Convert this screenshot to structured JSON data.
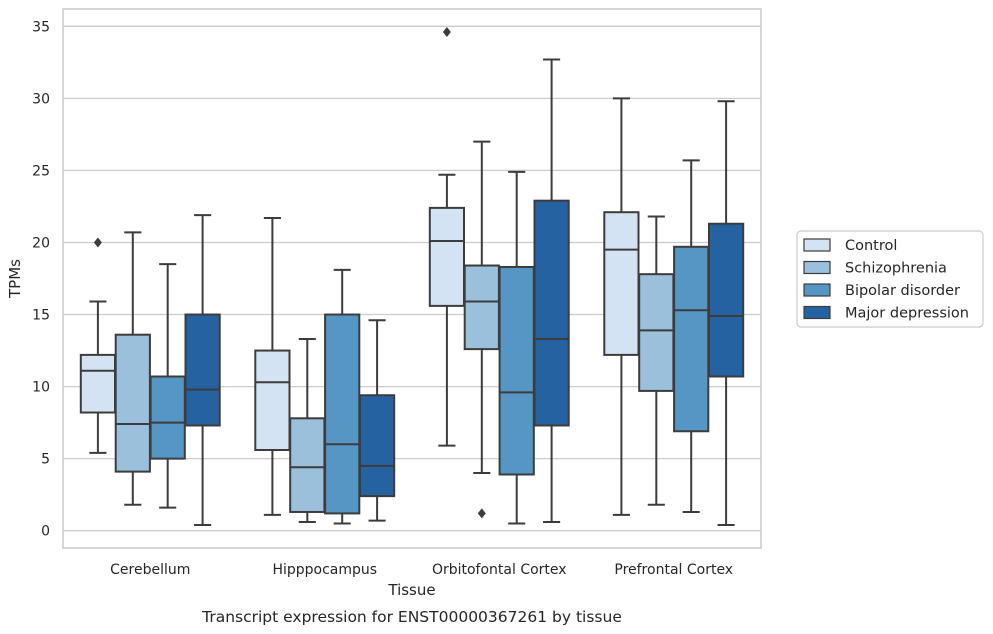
{
  "chart_data": {
    "type": "box",
    "xlabel": "Tissue",
    "ylabel": "TPMs",
    "caption": "Transcript expression for ENST00000367261 by tissue",
    "ylim": [
      -1.2,
      36.2
    ],
    "yticks": [
      0,
      5,
      10,
      15,
      20,
      25,
      30,
      35
    ],
    "grid": "horizontal",
    "legend_position": "right",
    "categories": [
      "Cerebellum",
      "Hipppocampus",
      "Orbitofontal Cortex",
      "Prefrontal Cortex"
    ],
    "series": [
      {
        "name": "Control",
        "color": "#d3e3f3",
        "boxes": [
          {
            "whisker_low": 5.4,
            "q1": 8.2,
            "median": 11.1,
            "q3": 12.2,
            "whisker_high": 15.9,
            "outliers": [
              20.0
            ]
          },
          {
            "whisker_low": 1.1,
            "q1": 5.6,
            "median": 10.3,
            "q3": 12.5,
            "whisker_high": 21.7,
            "outliers": []
          },
          {
            "whisker_low": 5.9,
            "q1": 15.6,
            "median": 20.1,
            "q3": 22.4,
            "whisker_high": 24.7,
            "outliers": [
              34.6
            ]
          },
          {
            "whisker_low": 1.1,
            "q1": 12.2,
            "median": 19.5,
            "q3": 22.1,
            "whisker_high": 30.0,
            "outliers": []
          }
        ]
      },
      {
        "name": "Schizophrenia",
        "color": "#9ac0dc",
        "boxes": [
          {
            "whisker_low": 1.8,
            "q1": 4.1,
            "median": 7.4,
            "q3": 13.6,
            "whisker_high": 20.7,
            "outliers": []
          },
          {
            "whisker_low": 0.6,
            "q1": 1.3,
            "median": 4.4,
            "q3": 7.8,
            "whisker_high": 13.3,
            "outliers": []
          },
          {
            "whisker_low": 4.0,
            "q1": 12.6,
            "median": 15.9,
            "q3": 18.4,
            "whisker_high": 27.0,
            "outliers": [
              1.2
            ]
          },
          {
            "whisker_low": 1.8,
            "q1": 9.7,
            "median": 13.9,
            "q3": 17.8,
            "whisker_high": 21.8,
            "outliers": []
          }
        ]
      },
      {
        "name": "Bipolar disorder",
        "color": "#5596c4",
        "boxes": [
          {
            "whisker_low": 1.6,
            "q1": 5.0,
            "median": 7.5,
            "q3": 10.7,
            "whisker_high": 18.5,
            "outliers": []
          },
          {
            "whisker_low": 0.5,
            "q1": 1.2,
            "median": 6.0,
            "q3": 15.0,
            "whisker_high": 18.1,
            "outliers": []
          },
          {
            "whisker_low": 0.5,
            "q1": 3.9,
            "median": 9.6,
            "q3": 18.3,
            "whisker_high": 24.9,
            "outliers": []
          },
          {
            "whisker_low": 1.3,
            "q1": 6.9,
            "median": 15.3,
            "q3": 19.7,
            "whisker_high": 25.7,
            "outliers": []
          }
        ]
      },
      {
        "name": "Major depression",
        "color": "#2462a2",
        "boxes": [
          {
            "whisker_low": 0.4,
            "q1": 7.3,
            "median": 9.8,
            "q3": 15.0,
            "whisker_high": 21.9,
            "outliers": []
          },
          {
            "whisker_low": 0.7,
            "q1": 2.4,
            "median": 4.5,
            "q3": 9.4,
            "whisker_high": 14.6,
            "outliers": []
          },
          {
            "whisker_low": 0.6,
            "q1": 7.3,
            "median": 13.3,
            "q3": 22.9,
            "whisker_high": 32.7,
            "outliers": []
          },
          {
            "whisker_low": 0.4,
            "q1": 10.7,
            "median": 14.9,
            "q3": 21.3,
            "whisker_high": 29.8,
            "outliers": []
          }
        ]
      }
    ]
  }
}
